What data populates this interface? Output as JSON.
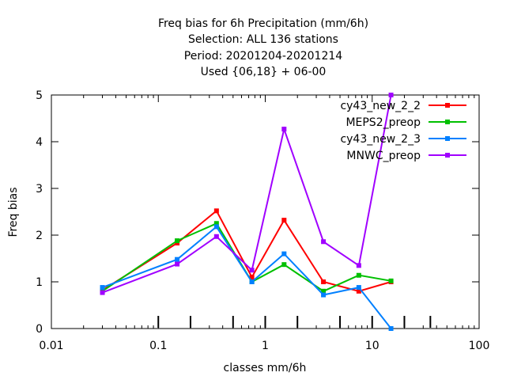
{
  "chart_data": {
    "type": "line",
    "title_lines": [
      "Freq bias  for 6h Precipitation (mm/6h)",
      "Selection: ALL    136 stations",
      "Period: 20201204-20201214",
      "Used {06,18} + 06-00"
    ],
    "xlabel": "classes mm/6h",
    "ylabel": "Freq bias",
    "x_scale": "log",
    "xlim": [
      0.01,
      100
    ],
    "ylim": [
      0,
      5
    ],
    "x_tick_labels": [
      "0.01",
      "0.1",
      "1",
      "10",
      "100"
    ],
    "y_tick_labels": [
      "0",
      "1",
      "2",
      "3",
      "4",
      "5"
    ],
    "class_marks": [
      0.1,
      0.2,
      0.5,
      1,
      2,
      5,
      10,
      20,
      35
    ],
    "grid": false,
    "legend_position": "top-right",
    "x": [
      0.03,
      0.15,
      0.35,
      0.75,
      1.5,
      3.5,
      7.5,
      15
    ],
    "series": [
      {
        "name": "cy43_new_2_2",
        "color": "#ff0000",
        "values": [
          0.82,
          1.83,
          2.52,
          1.1,
          2.32,
          1.0,
          0.8,
          1.0
        ]
      },
      {
        "name": "MEPS2_preop",
        "color": "#00c000",
        "values": [
          0.8,
          1.88,
          2.25,
          1.0,
          1.37,
          0.8,
          1.14,
          1.02
        ]
      },
      {
        "name": "cy43_new_2_3",
        "color": "#0080ff",
        "values": [
          0.88,
          1.48,
          2.18,
          1.0,
          1.6,
          0.72,
          0.88,
          0.0
        ]
      },
      {
        "name": "MNWC_preop",
        "color": "#a000ff",
        "values": [
          0.77,
          1.38,
          1.97,
          1.25,
          4.27,
          1.86,
          1.35,
          5.0
        ]
      }
    ]
  }
}
